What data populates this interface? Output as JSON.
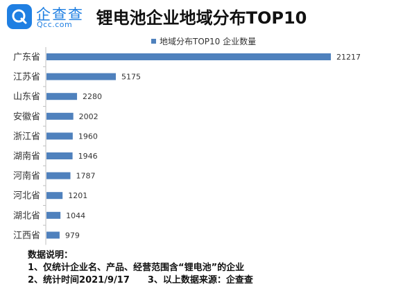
{
  "logo": {
    "brand": "企查查",
    "domain": "Qcc.com",
    "icon": "qcc-q-icon"
  },
  "title": "锂电池企业地域分布TOP10",
  "chart_data": {
    "type": "bar",
    "orientation": "horizontal",
    "title": "锂电池企业地域分布TOP10",
    "categories": [
      "广东省",
      "江苏省",
      "山东省",
      "安徽省",
      "浙江省",
      "湖南省",
      "河南省",
      "河北省",
      "湖北省",
      "江西省"
    ],
    "series": [
      {
        "name": "地域分布TOP10 企业数量",
        "values": [
          21217,
          5175,
          2280,
          2002,
          1960,
          1946,
          1787,
          1201,
          1044,
          979
        ]
      }
    ],
    "legend_position": "top",
    "grid": false,
    "bar_color": "#4f81bd",
    "value_labels": [
      "21217",
      "5175",
      "2280",
      "2002",
      "1960",
      "1946",
      "1787",
      "1201",
      "1044",
      "979"
    ]
  },
  "notes": {
    "heading": "数据说明：",
    "line1": "1、仅统计企业名、产品、经营范围含“锂电池”的企业",
    "line2a": "2、统计时间2021/9/17",
    "line2b": "3、以上数据来源：企查查"
  }
}
